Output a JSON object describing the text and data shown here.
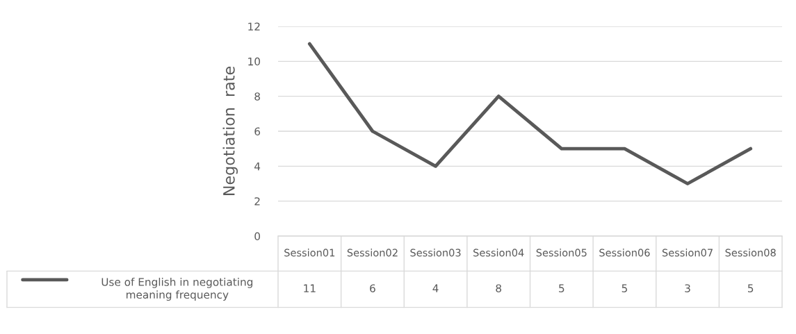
{
  "chart_data": {
    "type": "line",
    "ylabel": "Negotiation  rate",
    "categories": [
      "Session01",
      "Session02",
      "Session03",
      "Session04",
      "Session05",
      "Session06",
      "Session07",
      "Session08"
    ],
    "series": [
      {
        "name": "Use of English in negotiating meaning frequency",
        "color": "#595959",
        "values": [
          11,
          6,
          4,
          8,
          5,
          5,
          3,
          5
        ]
      }
    ],
    "ylim": [
      0,
      12
    ],
    "yticks": [
      0,
      2,
      4,
      6,
      8,
      10,
      12
    ],
    "grid": "y",
    "legend": "bottom",
    "data_labels": true,
    "marker": "none",
    "line_style": "solid"
  }
}
